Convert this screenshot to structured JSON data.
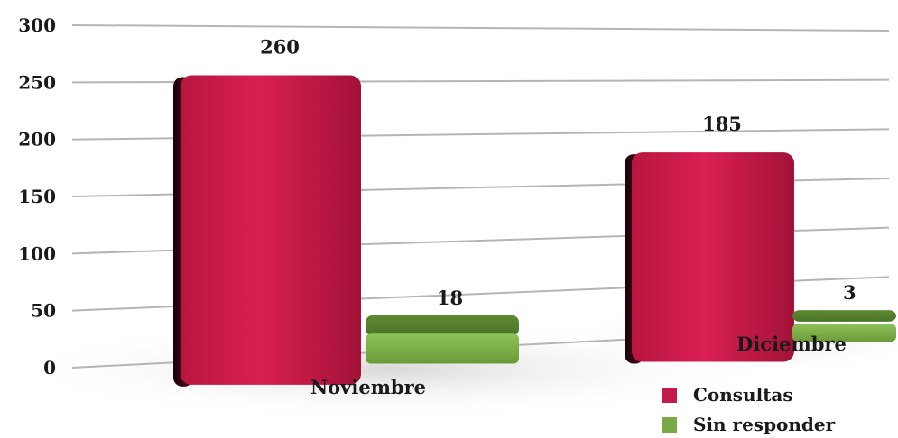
{
  "chart_data": {
    "type": "bar",
    "categories": [
      "Noviembre",
      "Diciembre"
    ],
    "series": [
      {
        "name": "Consultas",
        "values": [
          260,
          185
        ],
        "color": "#c41b4a"
      },
      {
        "name": "Sin responder",
        "values": [
          18,
          3
        ],
        "color": "#7aa845"
      }
    ],
    "ylim": [
      0,
      300
    ],
    "yticks": [
      "0",
      "50",
      "100",
      "150",
      "200",
      "250",
      "300"
    ],
    "grid": true,
    "legend_position": "bottom-right",
    "three_d": true
  }
}
